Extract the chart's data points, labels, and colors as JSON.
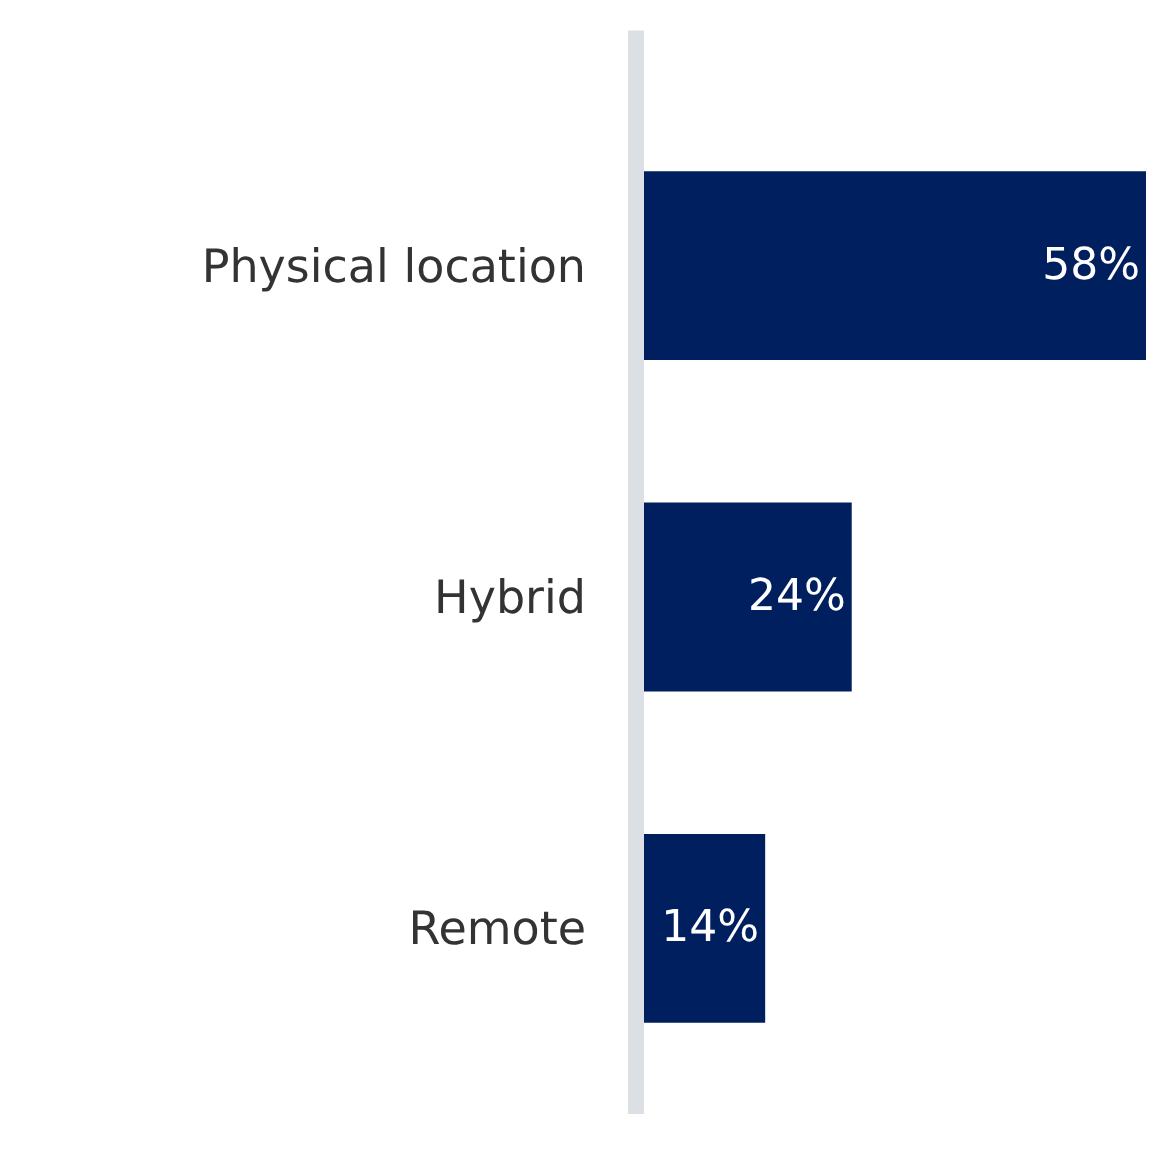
{
  "chart_data": {
    "type": "bar",
    "orientation": "horizontal",
    "categories": [
      "Physical location",
      "Hybrid",
      "Remote"
    ],
    "values": [
      58,
      24,
      14
    ],
    "value_labels": [
      "58%",
      "24%",
      "14%"
    ],
    "color": "#001f5f",
    "xlim": [
      0,
      58
    ],
    "tick_labels": "y"
  }
}
